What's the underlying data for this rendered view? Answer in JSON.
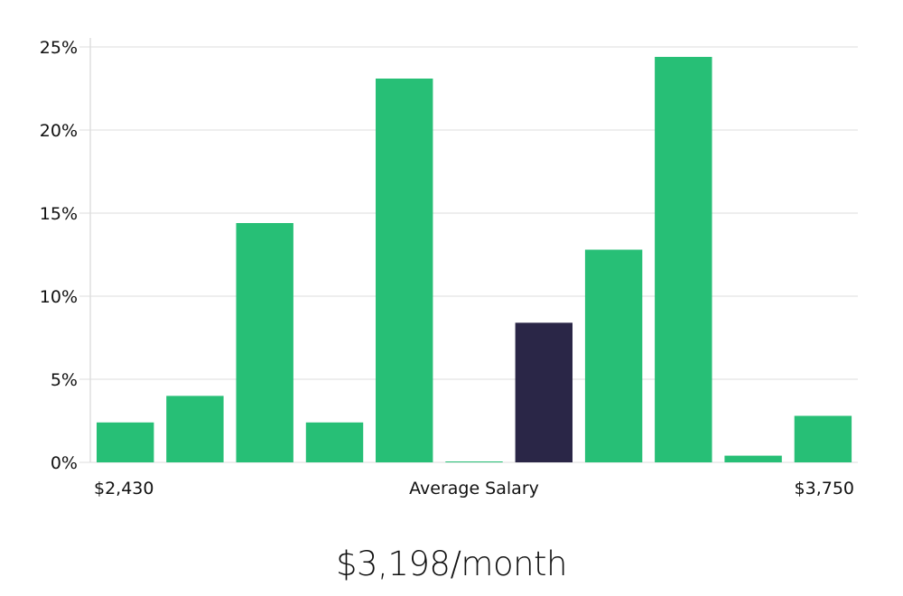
{
  "chart_data": {
    "type": "bar",
    "categories": [
      "1",
      "2",
      "3",
      "4",
      "5",
      "6",
      "7",
      "8",
      "9",
      "10",
      "11"
    ],
    "values": [
      2.4,
      4.0,
      14.4,
      2.4,
      23.1,
      0.05,
      8.4,
      12.8,
      24.4,
      0.4,
      2.8
    ],
    "highlight_index": 6,
    "yticks": [
      "0%",
      "5%",
      "10%",
      "15%",
      "20%",
      "25%"
    ],
    "ylim": [
      0,
      25
    ],
    "grid": true,
    "x_labels": {
      "left": "$2,430",
      "center": "Average Salary",
      "right": "$3,750"
    },
    "colors": {
      "bar": "#27bf76",
      "highlight": "#2a2647",
      "grid": "#dcdcdc"
    }
  },
  "salary": {
    "figure": "$3,198/month"
  }
}
